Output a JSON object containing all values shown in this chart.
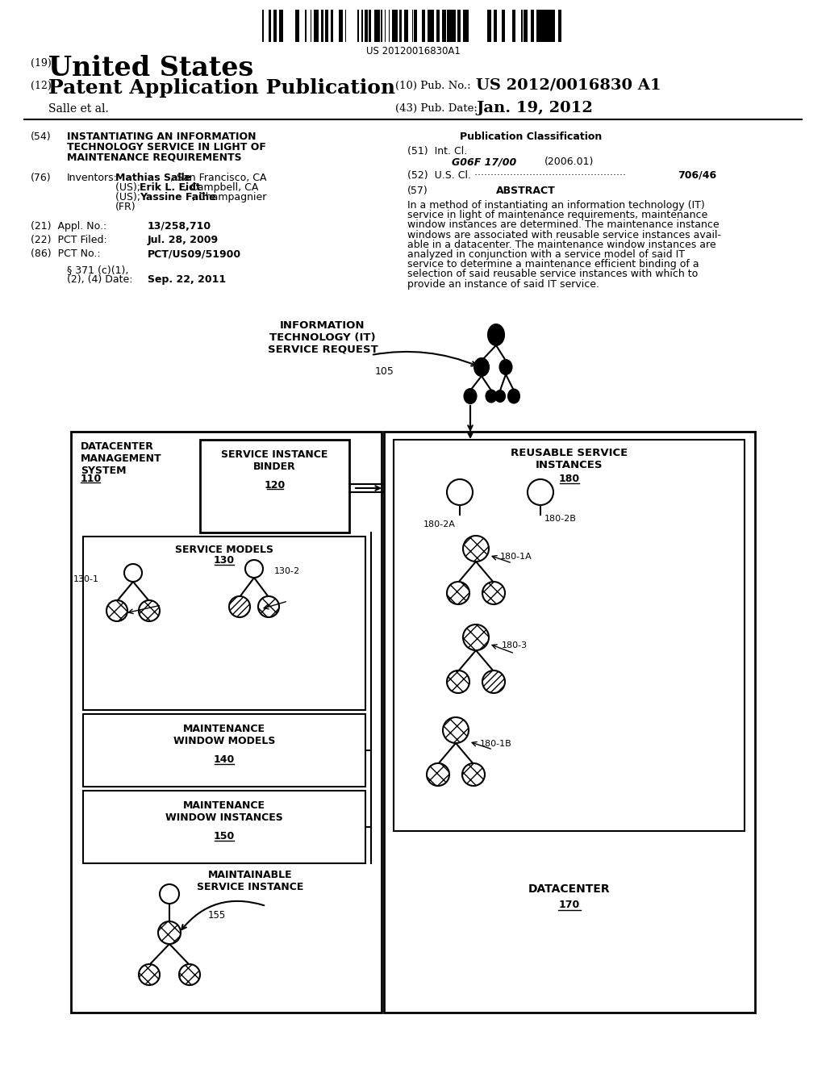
{
  "background_color": "#ffffff",
  "barcode_text": "US 20120016830A1",
  "pub_no": "US 2012/0016830 A1",
  "pub_date": "Jan. 19, 2012",
  "author": "Salle et al.",
  "field54_title": "INSTANTIATING AN INFORMATION\nTECHNOLOGY SERVICE IN LIGHT OF\nMAINTENANCE REQUIREMENTS",
  "int_cl_code": "G06F 17/00",
  "int_cl_year": "(2006.01)",
  "us_cl_val": "706/46",
  "abstract_text": "In a method of instantiating an information technology (IT)\nservice in light of maintenance requirements, maintenance\nwindow instances are determined. The maintenance instance\nwindows are associated with reusable service instances avail-\nable in a datacenter. The maintenance window instances are\nanalyzed in conjunction with a service model of said IT\nservice to determine a maintenance efficient binding of a\nselection of said reusable service instances with which to\nprovide an instance of said IT service.",
  "appl_no": "13/258,710",
  "pct_filed": "Jul. 28, 2009",
  "pct_no": "PCT/US09/51900",
  "par371_date": "Sep. 22, 2011"
}
